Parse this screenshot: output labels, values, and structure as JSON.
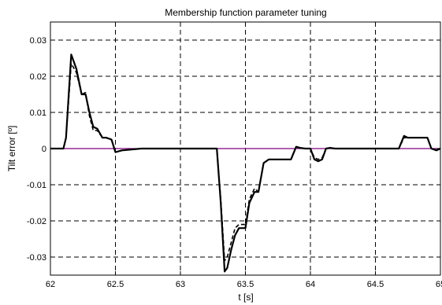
{
  "chart_data": {
    "type": "line",
    "title": "Membership function parameter tuning",
    "xlabel": "t [s]",
    "ylabel": "Tilt error [º]",
    "xlim": [
      62,
      65
    ],
    "ylim": [
      -0.035,
      0.035
    ],
    "xticks": [
      62,
      62.5,
      63,
      63.5,
      64,
      64.5,
      65
    ],
    "xtick_labels": [
      "62",
      "62.5",
      "63",
      "63.5",
      "64",
      "64.5",
      "65"
    ],
    "yticks": [
      0.03,
      0.02,
      0.01,
      0,
      -0.01,
      -0.02,
      -0.03
    ],
    "ytick_labels": [
      "0.03",
      "0.02",
      "0.01",
      "0",
      "-0.01",
      "-0.02",
      "-0.03"
    ],
    "grid": true,
    "reference_line": {
      "y": 0,
      "color": "#800080"
    },
    "series": [
      {
        "style": "solid",
        "color": "#000000",
        "x": [
          62,
          62.1,
          62.12,
          62.16,
          62.2,
          62.24,
          62.27,
          62.3,
          62.33,
          62.36,
          62.4,
          62.43,
          62.47,
          62.5,
          62.55,
          62.7,
          63.0,
          63.28,
          63.31,
          63.34,
          63.36,
          63.39,
          63.42,
          63.45,
          63.48,
          63.5,
          63.53,
          63.57,
          63.6,
          63.64,
          63.68,
          63.85,
          63.89,
          63.92,
          63.96,
          64.0,
          64.03,
          64.06,
          64.09,
          64.12,
          64.15,
          64.19,
          64.6,
          64.68,
          64.72,
          64.75,
          64.9,
          64.93,
          64.97,
          65.0
        ],
        "y": [
          0,
          0,
          0.003,
          0.026,
          0.022,
          0.015,
          0.015,
          0.01,
          0.006,
          0.0055,
          0.003,
          0.003,
          0.0025,
          -0.001,
          -0.0005,
          0,
          0,
          0,
          -0.015,
          -0.034,
          -0.033,
          -0.028,
          -0.024,
          -0.022,
          -0.022,
          -0.022,
          -0.015,
          -0.012,
          -0.012,
          -0.004,
          -0.003,
          -0.003,
          0.0005,
          0.0002,
          0,
          0,
          -0.003,
          -0.0035,
          -0.003,
          0,
          0.0002,
          0,
          0,
          0,
          0.0035,
          0.003,
          0.003,
          0,
          -0.0005,
          0
        ]
      },
      {
        "style": "dashed",
        "color": "#000000",
        "x": [
          62,
          62.1,
          62.12,
          62.16,
          62.2,
          62.24,
          62.27,
          62.3,
          62.33,
          62.36,
          62.4,
          62.43,
          62.47,
          62.5,
          62.55,
          62.7,
          63.0,
          63.28,
          63.31,
          63.34,
          63.36,
          63.39,
          63.42,
          63.45,
          63.48,
          63.5,
          63.53,
          63.57,
          63.6,
          63.64,
          63.68,
          63.85,
          63.89,
          63.92,
          63.96,
          64.0,
          64.03,
          64.06,
          64.09,
          64.12,
          64.15,
          64.19,
          64.6,
          64.68,
          64.72,
          64.75,
          64.9,
          64.93,
          64.97,
          65.0
        ],
        "y": [
          0,
          0,
          0.003,
          0.0235,
          0.021,
          0.015,
          0.0155,
          0.009,
          0.005,
          0.005,
          0.003,
          0.003,
          0.0025,
          -0.001,
          -0.0005,
          0,
          0,
          0,
          -0.014,
          -0.031,
          -0.03,
          -0.026,
          -0.022,
          -0.021,
          -0.021,
          -0.021,
          -0.014,
          -0.011,
          -0.012,
          -0.004,
          -0.003,
          -0.003,
          0.0005,
          0.0002,
          0,
          0,
          -0.0025,
          -0.003,
          -0.0025,
          0,
          0.0002,
          0,
          0,
          0,
          0.003,
          0.003,
          0.003,
          0,
          -0.0005,
          0
        ]
      }
    ]
  }
}
